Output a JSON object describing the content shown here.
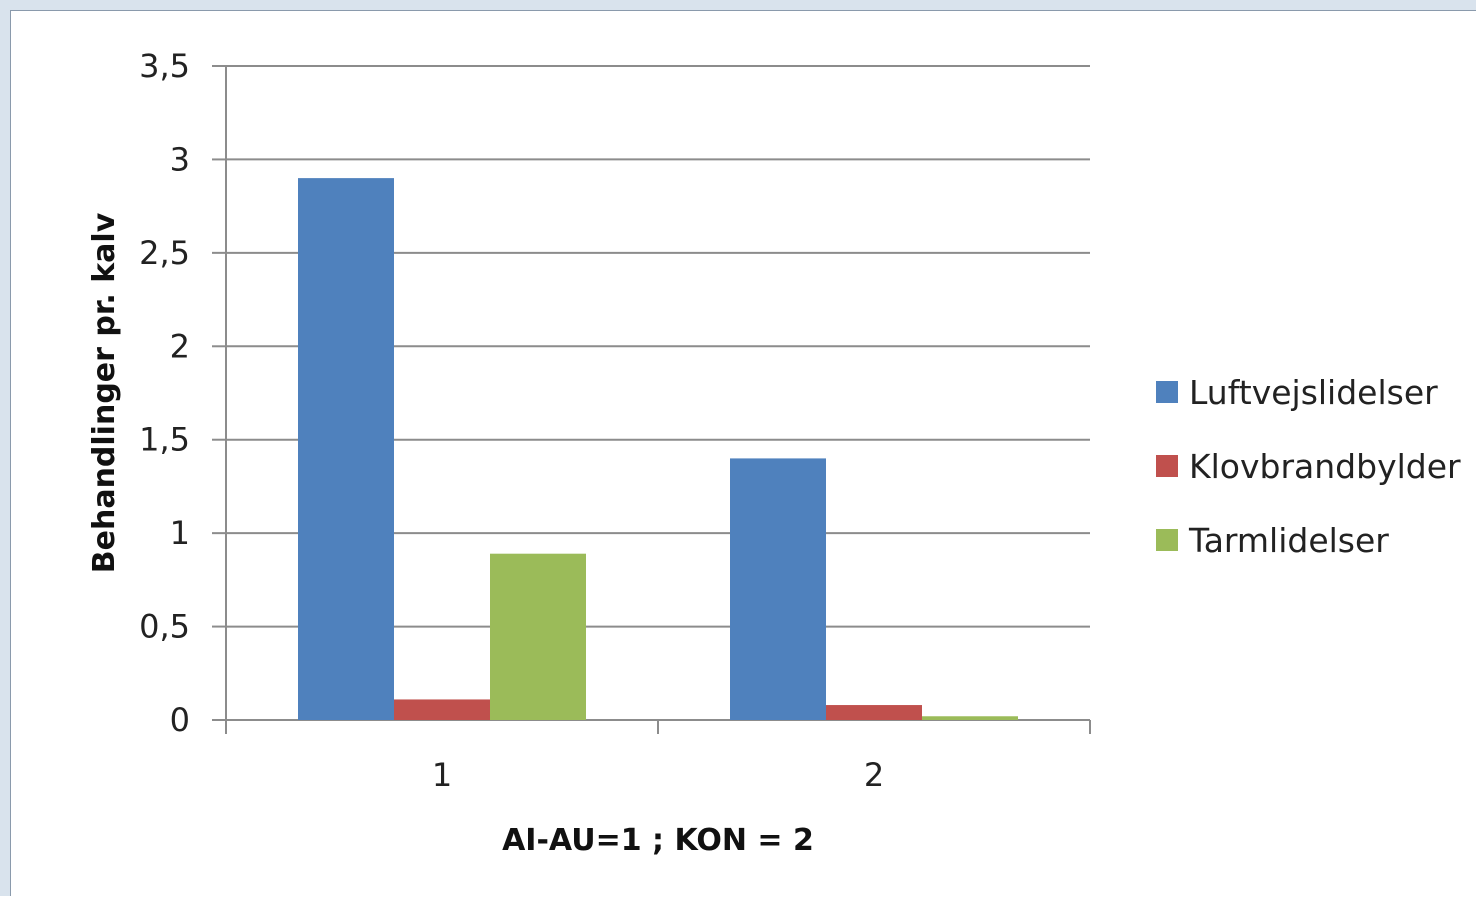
{
  "chart_data": {
    "type": "bar",
    "title": "",
    "xlabel": "AI-AU=1 ; KON = 2",
    "ylabel": "Behandlinger pr. kalv",
    "categories": [
      "1",
      "2"
    ],
    "ylim": [
      0,
      3.5
    ],
    "yticks": [
      0,
      0.5,
      1,
      1.5,
      2,
      2.5,
      3,
      3.5
    ],
    "ytick_labels": [
      "0",
      "0,5",
      "1",
      "1,5",
      "2",
      "2,5",
      "3",
      "3,5"
    ],
    "grid": true,
    "legend_position": "right",
    "series": [
      {
        "name": "Luftvejslidelser",
        "color": "#4f81bd",
        "values": [
          2.9,
          1.4
        ]
      },
      {
        "name": "Klovbrandbylder",
        "color": "#c0504d",
        "values": [
          0.11,
          0.08
        ]
      },
      {
        "name": "Tarmlidelser",
        "color": "#9bbb59",
        "values": [
          0.89,
          0.02
        ]
      }
    ]
  }
}
